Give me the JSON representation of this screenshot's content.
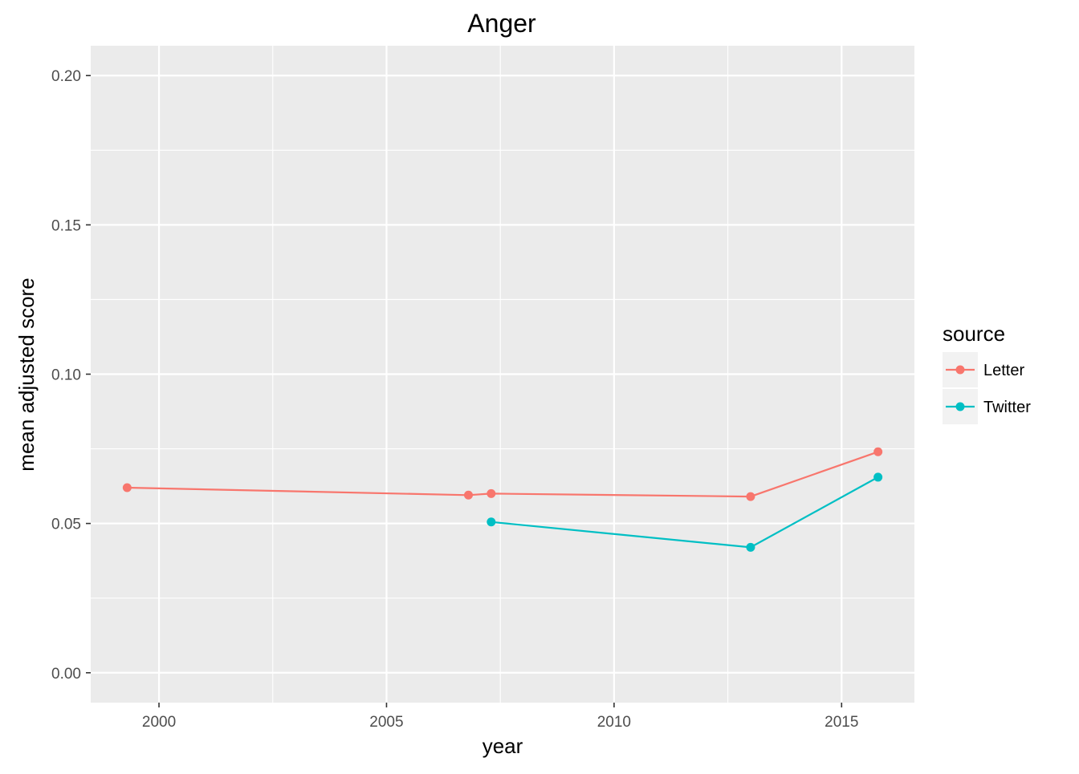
{
  "chart_data": {
    "type": "line",
    "title": "Anger",
    "xlabel": "year",
    "ylabel": "mean adjusted score",
    "xlim": [
      1998.5,
      2016.6
    ],
    "ylim": [
      -0.01,
      0.21
    ],
    "x_ticks": [
      2000,
      2005,
      2010,
      2015
    ],
    "x_minor_ticks": [
      2002.5,
      2007.5,
      2012.5
    ],
    "y_ticks": [
      0.0,
      0.05,
      0.1,
      0.15,
      0.2
    ],
    "y_tick_labels": [
      "0.00",
      "0.05",
      "0.10",
      "0.15",
      "0.20"
    ],
    "y_minor_ticks": [
      0.025,
      0.075,
      0.125,
      0.175
    ],
    "grid": true,
    "legend": {
      "title": "source",
      "position": "right",
      "entries": [
        "Letter",
        "Twitter"
      ]
    },
    "series": [
      {
        "name": "Letter",
        "color": "#F8766D",
        "x": [
          1999.3,
          2006.8,
          2007.3,
          2013.0,
          2015.8
        ],
        "y": [
          0.062,
          0.0595,
          0.06,
          0.059,
          0.074
        ]
      },
      {
        "name": "Twitter",
        "color": "#00BFC4",
        "x": [
          2007.3,
          2013.0,
          2015.8
        ],
        "y": [
          0.0505,
          0.042,
          0.0655
        ]
      }
    ]
  }
}
